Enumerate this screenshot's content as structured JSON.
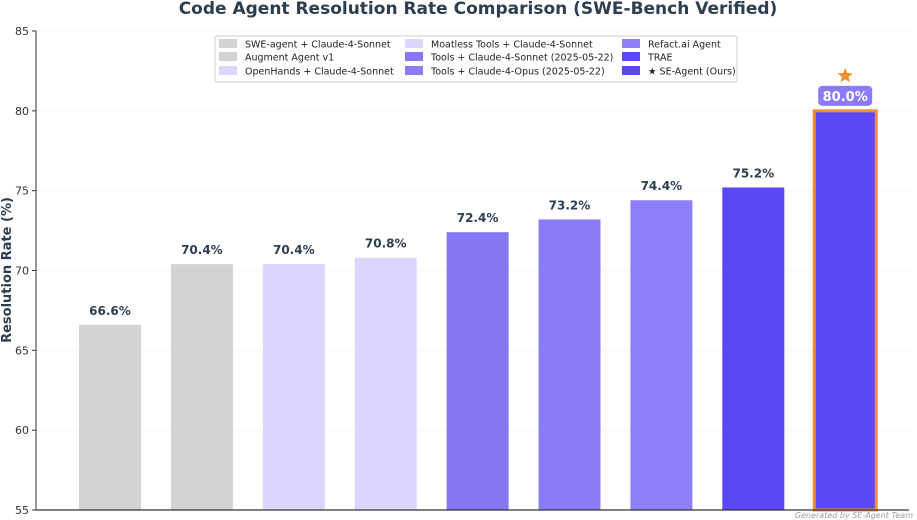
{
  "chart_data": {
    "type": "bar",
    "title": "Code Agent Resolution Rate Comparison (SWE-Bench Verified)",
    "xlabel": "",
    "ylabel": "Resolution Rate (%)",
    "ylim": [
      55,
      85
    ],
    "yticks": [
      55,
      60,
      65,
      70,
      75,
      80,
      85
    ],
    "grid": true,
    "legend_position": "top-center",
    "categories": [
      "SWE-agent + Claude-4-Sonnet",
      "Augment Agent v1",
      "OpenHands + Claude-4-Sonnet",
      "Moatless Tools + Claude-4-Sonnet",
      "Tools + Claude-4-Sonnet (2025-05-22)",
      "Tools + Claude-4-Opus (2025-05-22)",
      "Refact.ai Agent",
      "TRAE",
      "★ SE-Agent (Ours)"
    ],
    "values": [
      66.6,
      70.4,
      70.4,
      70.8,
      72.4,
      73.2,
      74.4,
      75.2,
      80.0
    ],
    "value_labels": [
      "66.6%",
      "70.4%",
      "70.4%",
      "70.8%",
      "72.4%",
      "73.2%",
      "74.4%",
      "75.2%",
      "80.0%"
    ],
    "colors": [
      "#d3d3d3",
      "#d3d3d3",
      "#dcd6ff",
      "#dcd6ff",
      "#8777f5",
      "#8a7cf7",
      "#8e7ffa",
      "#5b47f5",
      "#5b47f5"
    ],
    "highlight": {
      "index": 8,
      "outline_color": "#f0902a",
      "marker": "star",
      "label_box_color": "#8a7cf7"
    },
    "footer": "Generated by SE-Agent Team"
  }
}
